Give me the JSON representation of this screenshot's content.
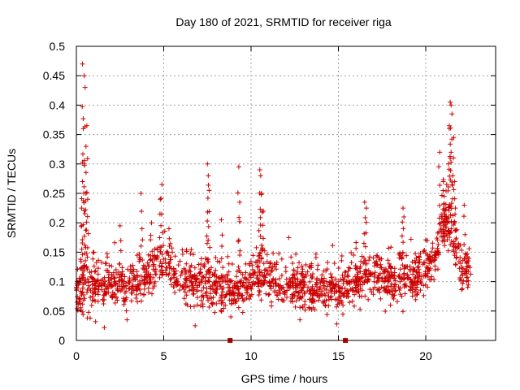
{
  "chart_data": {
    "type": "scatter",
    "title": "Day 180 of 2021, SRMTID for receiver riga",
    "xlabel": "GPS time / hours",
    "ylabel": "SRMTID / TECUs",
    "xlim": [
      0,
      24
    ],
    "ylim": [
      0,
      0.5
    ],
    "x_ticks": [
      0,
      5,
      10,
      15,
      20
    ],
    "x_tick_labels": [
      "0",
      "5",
      "10",
      "15",
      "20"
    ],
    "y_ticks": [
      0,
      0.05,
      0.1,
      0.15,
      0.2,
      0.25,
      0.3,
      0.35,
      0.4,
      0.45,
      0.5
    ],
    "y_tick_labels": [
      "0",
      "0.05",
      "0.1",
      "0.15",
      "0.2",
      "0.25",
      "0.3",
      "0.35",
      "0.4",
      "0.45",
      "0.5"
    ],
    "grid": true,
    "marker": "+",
    "color": "#cc0000",
    "series": [
      {
        "name": "SRMTID",
        "x_range": [
          0.0,
          22.6
        ],
        "baseline_profile": [
          [
            0.0,
            0.085
          ],
          [
            1.0,
            0.09
          ],
          [
            2.0,
            0.095
          ],
          [
            3.0,
            0.09
          ],
          [
            4.0,
            0.11
          ],
          [
            4.8,
            0.13
          ],
          [
            5.5,
            0.11
          ],
          [
            6.5,
            0.095
          ],
          [
            7.5,
            0.1
          ],
          [
            8.5,
            0.085
          ],
          [
            9.5,
            0.085
          ],
          [
            10.5,
            0.11
          ],
          [
            11.5,
            0.095
          ],
          [
            12.5,
            0.09
          ],
          [
            13.5,
            0.09
          ],
          [
            14.5,
            0.085
          ],
          [
            15.5,
            0.09
          ],
          [
            16.5,
            0.11
          ],
          [
            17.5,
            0.105
          ],
          [
            18.5,
            0.1
          ],
          [
            19.5,
            0.11
          ],
          [
            20.5,
            0.13
          ],
          [
            21.0,
            0.2
          ],
          [
            21.5,
            0.18
          ],
          [
            22.0,
            0.12
          ],
          [
            22.6,
            0.11
          ]
        ],
        "peaks": [
          {
            "x": 0.35,
            "y": 0.47
          },
          {
            "x": 0.45,
            "y": 0.45
          },
          {
            "x": 0.5,
            "y": 0.43
          },
          {
            "x": 0.4,
            "y": 0.36
          },
          {
            "x": 0.6,
            "y": 0.365
          },
          {
            "x": 0.55,
            "y": 0.33
          },
          {
            "x": 0.45,
            "y": 0.3
          },
          {
            "x": 0.35,
            "y": 0.27
          },
          {
            "x": 0.55,
            "y": 0.25
          },
          {
            "x": 0.3,
            "y": 0.225
          },
          {
            "x": 0.65,
            "y": 0.24
          },
          {
            "x": 1.0,
            "y": 0.15
          },
          {
            "x": 2.5,
            "y": 0.195
          },
          {
            "x": 3.7,
            "y": 0.25
          },
          {
            "x": 4.3,
            "y": 0.2
          },
          {
            "x": 4.8,
            "y": 0.24
          },
          {
            "x": 4.9,
            "y": 0.265
          },
          {
            "x": 5.3,
            "y": 0.19
          },
          {
            "x": 7.5,
            "y": 0.3
          },
          {
            "x": 7.55,
            "y": 0.28
          },
          {
            "x": 7.6,
            "y": 0.255
          },
          {
            "x": 8.3,
            "y": 0.205
          },
          {
            "x": 9.3,
            "y": 0.295
          },
          {
            "x": 9.35,
            "y": 0.235
          },
          {
            "x": 10.5,
            "y": 0.29
          },
          {
            "x": 10.55,
            "y": 0.28
          },
          {
            "x": 10.6,
            "y": 0.25
          },
          {
            "x": 10.7,
            "y": 0.22
          },
          {
            "x": 16.5,
            "y": 0.235
          },
          {
            "x": 16.6,
            "y": 0.225
          },
          {
            "x": 18.7,
            "y": 0.225
          },
          {
            "x": 18.75,
            "y": 0.21
          },
          {
            "x": 20.8,
            "y": 0.32
          },
          {
            "x": 21.0,
            "y": 0.27
          },
          {
            "x": 21.2,
            "y": 0.265
          },
          {
            "x": 21.4,
            "y": 0.405
          },
          {
            "x": 21.45,
            "y": 0.4
          },
          {
            "x": 21.5,
            "y": 0.385
          },
          {
            "x": 21.35,
            "y": 0.365
          },
          {
            "x": 21.6,
            "y": 0.345
          },
          {
            "x": 21.45,
            "y": 0.32
          },
          {
            "x": 21.55,
            "y": 0.28
          },
          {
            "x": 21.3,
            "y": 0.3
          },
          {
            "x": 21.7,
            "y": 0.225
          },
          {
            "x": 22.2,
            "y": 0.23
          }
        ],
        "lows": [
          {
            "x": 1.6,
            "y": 0.022
          },
          {
            "x": 6.8,
            "y": 0.025
          },
          {
            "x": 12.8,
            "y": 0.035
          },
          {
            "x": 14.9,
            "y": 0.028
          },
          {
            "x": 2.9,
            "y": 0.035
          },
          {
            "x": 1.1,
            "y": 0.032
          }
        ]
      }
    ],
    "axis_markers": [
      {
        "x": 8.8,
        "y": 0,
        "shape": "square"
      },
      {
        "x": 15.4,
        "y": 0,
        "shape": "square"
      }
    ]
  }
}
